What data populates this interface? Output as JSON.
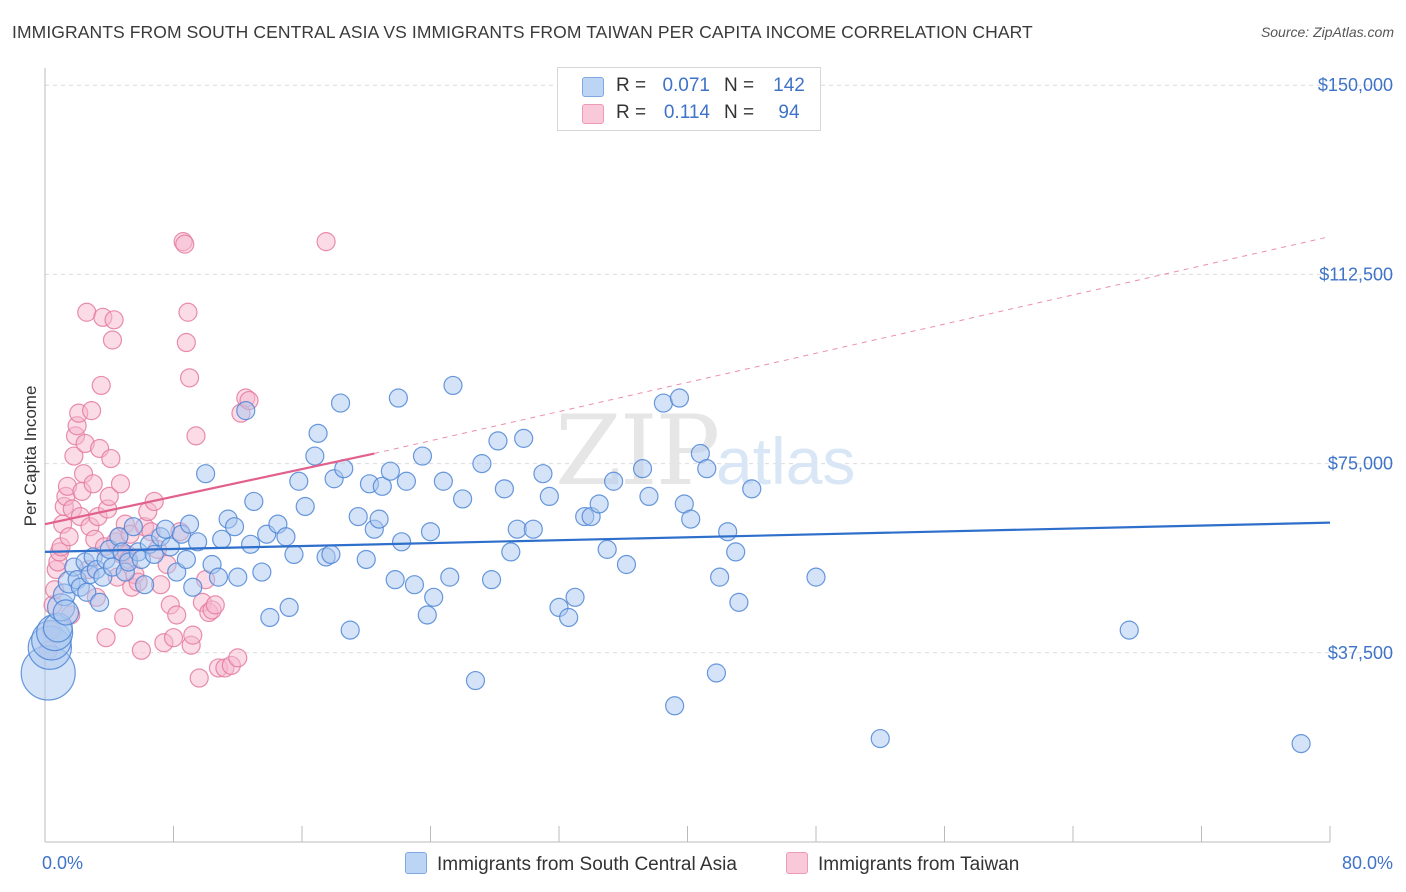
{
  "title": "IMMIGRANTS FROM SOUTH CENTRAL ASIA VS IMMIGRANTS FROM TAIWAN PER CAPITA INCOME CORRELATION CHART",
  "source": "Source: ZipAtlas.com",
  "watermark": {
    "zip": "ZIP",
    "atlas": "atlas"
  },
  "colors": {
    "blue_fill": "#a9c8f0",
    "blue_stroke": "#4f86d6",
    "blue_line": "#2f6fcc",
    "pink_fill": "#f6b8cd",
    "pink_stroke": "#e57a9f",
    "pink_line": "#e2608c",
    "accent_text": "#3f73c8",
    "grid": "#dcdcdc"
  },
  "legend": [
    {
      "r_label": "R =",
      "r_value": "0.071",
      "n_label": "N =",
      "n_value": "142"
    },
    {
      "r_label": "R =",
      "r_value": "0.114",
      "n_label": "N =",
      "n_value": "94"
    }
  ],
  "bottom_legend": {
    "series1": "Immigrants from South Central Asia",
    "series2": "Immigrants from Taiwan"
  },
  "chart_data": {
    "type": "scatter",
    "title": "IMMIGRANTS FROM SOUTH CENTRAL ASIA VS IMMIGRANTS FROM TAIWAN PER CAPITA INCOME CORRELATION CHART",
    "xlabel": "",
    "ylabel": "Per Capita Income",
    "xlim": [
      0,
      80
    ],
    "ylim": [
      0,
      155000
    ],
    "x_tick_labels": [
      "0.0%",
      "80.0%"
    ],
    "y_ticks": [
      37500,
      75000,
      112500,
      150000
    ],
    "y_tick_labels": [
      "$37,500",
      "$75,000",
      "$112,500",
      "$150,000"
    ],
    "grid": true,
    "series": [
      {
        "name": "Immigrants from South Central Asia",
        "R": 0.071,
        "N": 142,
        "trend": {
          "x": [
            0,
            80
          ],
          "y": [
            57500,
            63300
          ],
          "style": "solid"
        },
        "points": [
          [
            0.2,
            33500,
            3
          ],
          [
            0.3,
            38500,
            2.4
          ],
          [
            0.4,
            40000,
            2.2
          ],
          [
            0.6,
            41500,
            2
          ],
          [
            0.8,
            42500,
            1.6
          ],
          [
            1.0,
            46500,
            1.5
          ],
          [
            1.2,
            49000,
            1.2
          ],
          [
            1.3,
            45500,
            1.4
          ],
          [
            1.5,
            51500,
            1.2
          ],
          [
            1.8,
            54500,
            1
          ],
          [
            2.0,
            52000,
            1
          ],
          [
            2.2,
            50500,
            1
          ],
          [
            2.5,
            55500,
            1
          ],
          [
            2.6,
            49500,
            1
          ],
          [
            2.8,
            53000,
            1
          ],
          [
            3.0,
            56500,
            1
          ],
          [
            3.2,
            54000,
            1
          ],
          [
            3.4,
            47500,
            1
          ],
          [
            3.6,
            52500,
            1
          ],
          [
            3.8,
            56000,
            1
          ],
          [
            4.0,
            58000,
            1
          ],
          [
            4.2,
            54500,
            1
          ],
          [
            4.6,
            60500,
            1
          ],
          [
            4.8,
            57500,
            1
          ],
          [
            5.0,
            53500,
            1
          ],
          [
            5.2,
            55500,
            1
          ],
          [
            5.5,
            62500,
            1
          ],
          [
            5.8,
            57500,
            1
          ],
          [
            6.0,
            56000,
            1
          ],
          [
            6.2,
            51000,
            1
          ],
          [
            6.5,
            59000,
            1
          ],
          [
            6.8,
            57000,
            1
          ],
          [
            7.2,
            60500,
            1
          ],
          [
            7.5,
            62000,
            1
          ],
          [
            7.8,
            58500,
            1
          ],
          [
            8.2,
            53500,
            1
          ],
          [
            8.5,
            61000,
            1
          ],
          [
            8.8,
            56000,
            1
          ],
          [
            9.0,
            63000,
            1
          ],
          [
            9.2,
            50500,
            1
          ],
          [
            9.5,
            59500,
            1
          ],
          [
            10.0,
            73000,
            1
          ],
          [
            10.4,
            55000,
            1
          ],
          [
            10.8,
            52500,
            1
          ],
          [
            11.0,
            60000,
            1
          ],
          [
            11.4,
            64000,
            1
          ],
          [
            11.8,
            62500,
            1
          ],
          [
            12.0,
            52500,
            1
          ],
          [
            12.5,
            85500,
            1
          ],
          [
            12.8,
            59000,
            1
          ],
          [
            13.0,
            67500,
            1
          ],
          [
            13.5,
            53500,
            1
          ],
          [
            13.8,
            61000,
            1
          ],
          [
            14.0,
            44500,
            1
          ],
          [
            14.5,
            63000,
            1
          ],
          [
            15.0,
            60500,
            1
          ],
          [
            15.2,
            46500,
            1
          ],
          [
            15.5,
            57000,
            1
          ],
          [
            15.8,
            71500,
            1
          ],
          [
            16.2,
            66500,
            1
          ],
          [
            16.8,
            76500,
            1
          ],
          [
            17.0,
            81000,
            1
          ],
          [
            17.5,
            56500,
            1
          ],
          [
            17.8,
            57000,
            1
          ],
          [
            18.0,
            72000,
            1
          ],
          [
            18.4,
            87000,
            1
          ],
          [
            18.6,
            74000,
            1
          ],
          [
            19.0,
            42000,
            1
          ],
          [
            19.5,
            64500,
            1
          ],
          [
            20.0,
            56000,
            1
          ],
          [
            20.2,
            71000,
            1
          ],
          [
            20.5,
            62000,
            1
          ],
          [
            20.8,
            64000,
            1
          ],
          [
            21.0,
            70500,
            1
          ],
          [
            21.5,
            73500,
            1
          ],
          [
            21.8,
            52000,
            1
          ],
          [
            22.0,
            88000,
            1
          ],
          [
            22.2,
            59500,
            1
          ],
          [
            22.5,
            71500,
            1
          ],
          [
            23.0,
            51000,
            1
          ],
          [
            23.5,
            76500,
            1
          ],
          [
            23.8,
            45000,
            1
          ],
          [
            24.0,
            61500,
            1
          ],
          [
            24.2,
            48500,
            1
          ],
          [
            24.8,
            71500,
            1
          ],
          [
            25.2,
            52500,
            1
          ],
          [
            25.4,
            90500,
            1
          ],
          [
            26.0,
            68000,
            1
          ],
          [
            26.8,
            32000,
            1
          ],
          [
            27.2,
            75000,
            1
          ],
          [
            27.8,
            52000,
            1
          ],
          [
            28.2,
            79500,
            1
          ],
          [
            28.6,
            70000,
            1
          ],
          [
            29.0,
            57500,
            1
          ],
          [
            29.4,
            62000,
            1
          ],
          [
            29.8,
            80000,
            1
          ],
          [
            30.4,
            62000,
            1
          ],
          [
            31.0,
            73000,
            1
          ],
          [
            31.4,
            68500,
            1
          ],
          [
            32.0,
            46500,
            1
          ],
          [
            32.6,
            44500,
            1
          ],
          [
            33.0,
            48500,
            1
          ],
          [
            33.6,
            64500,
            1
          ],
          [
            34.0,
            64500,
            1
          ],
          [
            34.5,
            67000,
            1
          ],
          [
            35.0,
            58000,
            1
          ],
          [
            35.4,
            71500,
            1
          ],
          [
            36.2,
            55000,
            1
          ],
          [
            37.2,
            74000,
            1
          ],
          [
            37.6,
            68500,
            1
          ],
          [
            38.5,
            87000,
            1
          ],
          [
            39.2,
            27000,
            1
          ],
          [
            39.5,
            88000,
            1
          ],
          [
            39.8,
            67000,
            1
          ],
          [
            40.2,
            64000,
            1
          ],
          [
            40.8,
            77000,
            1
          ],
          [
            41.2,
            74000,
            1
          ],
          [
            41.8,
            33500,
            1
          ],
          [
            42.0,
            52500,
            1
          ],
          [
            42.5,
            61500,
            1
          ],
          [
            43.0,
            57500,
            1
          ],
          [
            43.2,
            47500,
            1
          ],
          [
            44.0,
            70000,
            1
          ],
          [
            48.0,
            52500,
            1
          ],
          [
            52.0,
            20500,
            1
          ],
          [
            67.5,
            42000,
            1
          ],
          [
            78.2,
            19500,
            1
          ]
        ]
      },
      {
        "name": "Immigrants from Taiwan",
        "R": 0.114,
        "N": 94,
        "trend": {
          "x": [
            0,
            20.5
          ],
          "y": [
            63000,
            77000
          ],
          "style": "solid",
          "extended_to": [
            80,
            120000
          ],
          "extended_style": "dashed"
        },
        "points": [
          [
            0.2,
            38000,
            1
          ],
          [
            0.4,
            42000,
            1
          ],
          [
            0.5,
            47000,
            1
          ],
          [
            0.6,
            50000,
            1
          ],
          [
            0.7,
            54000,
            1
          ],
          [
            0.8,
            55500,
            1
          ],
          [
            0.9,
            57500,
            1
          ],
          [
            1.0,
            58500,
            1
          ],
          [
            1.1,
            63000,
            1
          ],
          [
            1.2,
            66500,
            1
          ],
          [
            1.3,
            68500,
            1
          ],
          [
            1.4,
            70500,
            1
          ],
          [
            1.5,
            60500,
            1
          ],
          [
            1.6,
            45000,
            1
          ],
          [
            1.7,
            66000,
            1
          ],
          [
            1.8,
            76500,
            1
          ],
          [
            1.9,
            80500,
            1
          ],
          [
            2.0,
            82500,
            1
          ],
          [
            2.1,
            85000,
            1
          ],
          [
            2.2,
            64500,
            1
          ],
          [
            2.3,
            69500,
            1
          ],
          [
            2.4,
            73000,
            1
          ],
          [
            2.5,
            79000,
            1
          ],
          [
            2.6,
            105000,
            1
          ],
          [
            2.7,
            54000,
            1
          ],
          [
            2.8,
            62500,
            1
          ],
          [
            2.9,
            85500,
            1
          ],
          [
            3.0,
            71000,
            1
          ],
          [
            3.1,
            60000,
            1
          ],
          [
            3.2,
            48500,
            1
          ],
          [
            3.3,
            64500,
            1
          ],
          [
            3.4,
            78000,
            1
          ],
          [
            3.5,
            90500,
            1
          ],
          [
            3.6,
            104000,
            1
          ],
          [
            3.7,
            58500,
            1
          ],
          [
            3.8,
            40500,
            1
          ],
          [
            3.9,
            66000,
            1
          ],
          [
            4.0,
            68500,
            1
          ],
          [
            4.1,
            76000,
            1
          ],
          [
            4.2,
            99500,
            1
          ],
          [
            4.3,
            103500,
            1
          ],
          [
            4.4,
            59500,
            1
          ],
          [
            4.5,
            52500,
            1
          ],
          [
            4.6,
            60500,
            1
          ],
          [
            4.7,
            71000,
            1
          ],
          [
            4.8,
            57000,
            1
          ],
          [
            4.9,
            44500,
            1
          ],
          [
            5.0,
            63000,
            1
          ],
          [
            5.1,
            57000,
            1
          ],
          [
            5.2,
            56000,
            1
          ],
          [
            5.3,
            61000,
            1
          ],
          [
            5.4,
            50500,
            1
          ],
          [
            5.6,
            53000,
            1
          ],
          [
            5.8,
            51500,
            1
          ],
          [
            6.0,
            38000,
            1
          ],
          [
            6.2,
            62500,
            1
          ],
          [
            6.4,
            65500,
            1
          ],
          [
            6.6,
            61500,
            1
          ],
          [
            6.8,
            67500,
            1
          ],
          [
            7.0,
            58000,
            1
          ],
          [
            7.2,
            51000,
            1
          ],
          [
            7.4,
            39500,
            1
          ],
          [
            7.6,
            55000,
            1
          ],
          [
            7.8,
            47000,
            1
          ],
          [
            8.0,
            40500,
            1
          ],
          [
            8.2,
            45000,
            1
          ],
          [
            8.4,
            61500,
            1
          ],
          [
            8.6,
            119000,
            1
          ],
          [
            8.7,
            118500,
            1
          ],
          [
            8.8,
            99000,
            1
          ],
          [
            8.9,
            105000,
            1
          ],
          [
            9.0,
            92000,
            1
          ],
          [
            9.1,
            39000,
            1
          ],
          [
            9.2,
            41000,
            1
          ],
          [
            9.4,
            80500,
            1
          ],
          [
            9.6,
            32500,
            1
          ],
          [
            9.8,
            47500,
            1
          ],
          [
            10.0,
            52000,
            1
          ],
          [
            10.2,
            45500,
            1
          ],
          [
            10.4,
            46000,
            1
          ],
          [
            10.6,
            47000,
            1
          ],
          [
            10.8,
            34500,
            1
          ],
          [
            11.2,
            34500,
            1
          ],
          [
            11.6,
            35000,
            1
          ],
          [
            12.0,
            36500,
            1
          ],
          [
            12.2,
            85000,
            1
          ],
          [
            12.5,
            88000,
            1
          ],
          [
            12.7,
            87500,
            1
          ],
          [
            17.5,
            119000,
            1
          ]
        ]
      }
    ]
  }
}
